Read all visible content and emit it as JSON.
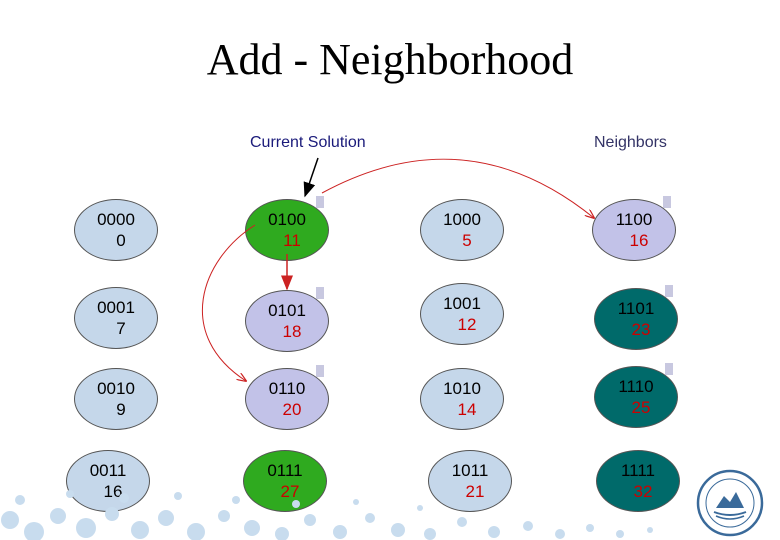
{
  "title": "Add - Neighborhood",
  "labels": {
    "current": "Current Solution",
    "neighbors": "Neighbors"
  },
  "colors": {
    "light": "#c5d7ea",
    "lavender": "#c2c2e8",
    "green": "#2faa1f",
    "teal": "#006a6a",
    "arrow": "#cc2222",
    "value_red": "#cc0000"
  },
  "nodes": [
    {
      "code": "0000",
      "value": "0"
    },
    {
      "code": "0001",
      "value": "7"
    },
    {
      "code": "0010",
      "value": "9"
    },
    {
      "code": "0011",
      "value": "16"
    },
    {
      "code": "0100",
      "value": "11"
    },
    {
      "code": "0101",
      "value": "18"
    },
    {
      "code": "0110",
      "value": "20"
    },
    {
      "code": "0111",
      "value": "27"
    },
    {
      "code": "1000",
      "value": "5"
    },
    {
      "code": "1001",
      "value": "12"
    },
    {
      "code": "1010",
      "value": "14"
    },
    {
      "code": "1011",
      "value": "21"
    },
    {
      "code": "1100",
      "value": "16"
    },
    {
      "code": "1101",
      "value": "23"
    },
    {
      "code": "1110",
      "value": "25"
    },
    {
      "code": "1111",
      "value": "32"
    }
  ],
  "logo": {
    "icon": "university-logo-icon"
  }
}
